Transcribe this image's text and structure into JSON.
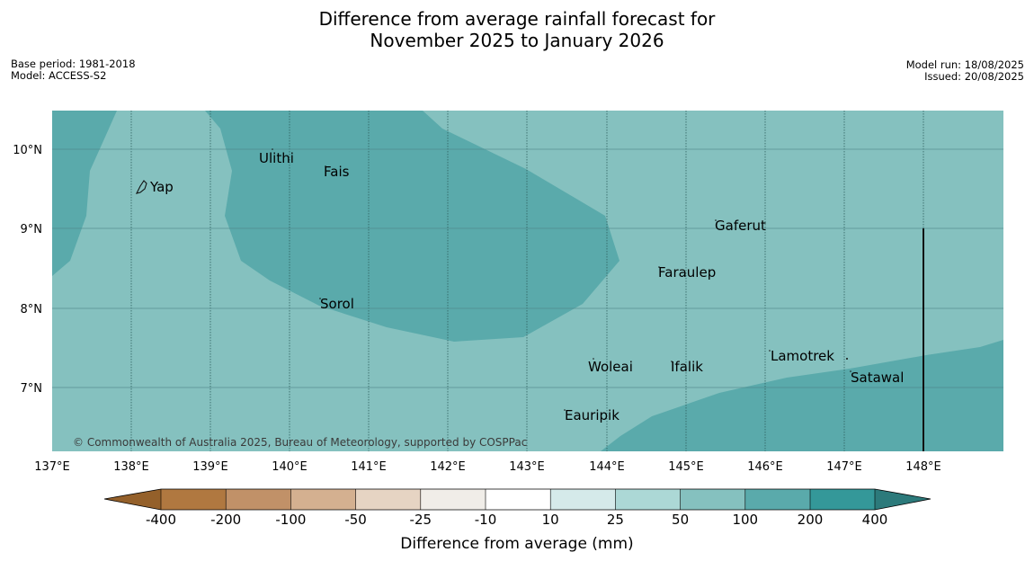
{
  "header": {
    "title_line1": "Difference from average rainfall forecast for",
    "title_line2": "November 2025 to January 2026",
    "base_period": "Base period: 1981-2018",
    "model": "Model: ACCESS-S2",
    "model_run": "Model run: 18/08/2025",
    "issued": "Issued: 20/08/2025"
  },
  "map": {
    "lon_labels": [
      "137°E",
      "138°E",
      "139°E",
      "140°E",
      "141°E",
      "142°E",
      "143°E",
      "144°E",
      "145°E",
      "146°E",
      "147°E",
      "148°E"
    ],
    "lat_labels": [
      "10°N",
      "9°N",
      "8°N",
      "7°N"
    ],
    "places": [
      "Yap",
      "Ulithi",
      "Fais",
      "Gaferut",
      "Faraulep",
      "Sorol",
      "Lamotrek",
      "Woleai",
      "Ifalik",
      "Satawal",
      "Eauripik"
    ],
    "copyright": "© Commonwealth of Australia 2025, Bureau of Meteorology, supported by COSPPac",
    "colors": {
      "light_teal": "#85c1bf",
      "mid_teal": "#5aaaab"
    }
  },
  "colorbar": {
    "ticks": [
      "-400",
      "-200",
      "-100",
      "-50",
      "-25",
      "-10",
      "10",
      "25",
      "50",
      "100",
      "200",
      "400"
    ],
    "colors": [
      "#94602a",
      "#b07840",
      "#c19168",
      "#d4b090",
      "#e6d4c3",
      "#f0ede8",
      "#ffffff",
      "#d5eaea",
      "#acd8d6",
      "#85c1bf",
      "#5aaaab",
      "#349899",
      "#2c7a7b"
    ],
    "label": "Difference from average (mm)"
  }
}
